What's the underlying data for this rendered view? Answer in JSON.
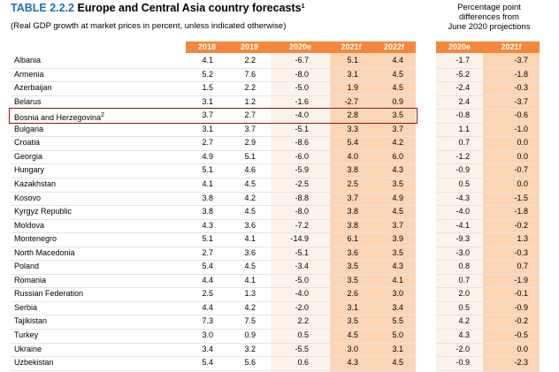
{
  "title": {
    "label": "TABLE 2.2.2",
    "text": "Europe and Central Asia country forecasts",
    "note_mark": "1"
  },
  "subtitle": "(Real GDP growth at market prices in percent, unless indicated otherwise)",
  "side_title": [
    "Percentage point",
    "differences from",
    "June 2020 projections"
  ],
  "table": {
    "headers": [
      "2018",
      "2019",
      "2020e",
      "2021f",
      "2022f"
    ],
    "diff_headers": [
      "2020e",
      "2021f"
    ],
    "rows": [
      {
        "country": "Albania",
        "values": [
          "4.1",
          "2.2",
          "-6.7",
          "5.1",
          "4.4"
        ],
        "diffs": [
          "-1.7",
          "-3.7"
        ]
      },
      {
        "country": "Armenia",
        "values": [
          "5.2",
          "7.6",
          "-8.0",
          "3.1",
          "4.5"
        ],
        "diffs": [
          "-5.2",
          "-1.8"
        ]
      },
      {
        "country": "Azerbaijan",
        "values": [
          "1.5",
          "2.2",
          "-5.0",
          "1.9",
          "4.5"
        ],
        "diffs": [
          "-2.4",
          "-0.3"
        ]
      },
      {
        "country": "Belarus",
        "values": [
          "3.1",
          "1.2",
          "-1.6",
          "-2.7",
          "0.9"
        ],
        "diffs": [
          "2.4",
          "-3.7"
        ]
      },
      {
        "country": "Bosnia and Herzegovina",
        "note_mark": "2",
        "values": [
          "3.7",
          "2.7",
          "-4.0",
          "2.8",
          "3.5"
        ],
        "diffs": [
          "-0.8",
          "-0.6"
        ]
      },
      {
        "country": "Bulgaria",
        "values": [
          "3.1",
          "3.7",
          "-5.1",
          "3.3",
          "3.7"
        ],
        "diffs": [
          "1.1",
          "-1.0"
        ]
      },
      {
        "country": "Croatia",
        "values": [
          "2.7",
          "2.9",
          "-8.6",
          "5.4",
          "4.2"
        ],
        "diffs": [
          "0.7",
          "0.0"
        ]
      },
      {
        "country": "Georgia",
        "values": [
          "4.9",
          "5.1",
          "-6.0",
          "4.0",
          "6.0"
        ],
        "diffs": [
          "-1.2",
          "0.0"
        ]
      },
      {
        "country": "Hungary",
        "values": [
          "5.1",
          "4.6",
          "-5.9",
          "3.8",
          "4.3"
        ],
        "diffs": [
          "-0.9",
          "-0.7"
        ]
      },
      {
        "country": "Kazakhstan",
        "values": [
          "4.1",
          "4.5",
          "-2.5",
          "2.5",
          "3.5"
        ],
        "diffs": [
          "0.5",
          "0.0"
        ]
      },
      {
        "country": "Kosovo",
        "values": [
          "3.8",
          "4.2",
          "-8.8",
          "3.7",
          "4.9"
        ],
        "diffs": [
          "-4.3",
          "-1.5"
        ]
      },
      {
        "country": "Kyrgyz Republic",
        "values": [
          "3.8",
          "4.5",
          "-8.0",
          "3.8",
          "4.5"
        ],
        "diffs": [
          "-4.0",
          "-1.8"
        ]
      },
      {
        "country": "Moldova",
        "values": [
          "4.3",
          "3.6",
          "-7.2",
          "3.8",
          "3.7"
        ],
        "diffs": [
          "-4.1",
          "-0.2"
        ]
      },
      {
        "country": "Montenegro",
        "values": [
          "5.1",
          "4.1",
          "-14.9",
          "6.1",
          "3.9"
        ],
        "diffs": [
          "-9.3",
          "1.3"
        ]
      },
      {
        "country": "North Macedonia",
        "values": [
          "2.7",
          "3.6",
          "-5.1",
          "3.6",
          "3.5"
        ],
        "diffs": [
          "-3.0",
          "-0.3"
        ]
      },
      {
        "country": "Poland",
        "values": [
          "5.4",
          "4.5",
          "-3.4",
          "3.5",
          "4.3"
        ],
        "diffs": [
          "0.8",
          "0.7"
        ]
      },
      {
        "country": "Romania",
        "values": [
          "4.4",
          "4.1",
          "-5.0",
          "3.5",
          "4.1"
        ],
        "diffs": [
          "0.7",
          "-1.9"
        ]
      },
      {
        "country": "Russian Federation",
        "values": [
          "2.5",
          "1.3",
          "-4.0",
          "2.6",
          "3.0"
        ],
        "diffs": [
          "2.0",
          "-0.1"
        ]
      },
      {
        "country": "Serbia",
        "values": [
          "4.4",
          "4.2",
          "-2.0",
          "3.1",
          "3.4"
        ],
        "diffs": [
          "0.5",
          "-0.9"
        ]
      },
      {
        "country": "Tajikistan",
        "values": [
          "7.3",
          "7.5",
          "2.2",
          "3.5",
          "5.5"
        ],
        "diffs": [
          "4.2",
          "-0.2"
        ]
      },
      {
        "country": "Turkey",
        "values": [
          "3.0",
          "0.9",
          "0.5",
          "4.5",
          "5.0"
        ],
        "diffs": [
          "4.3",
          "-0.5"
        ]
      },
      {
        "country": "Ukraine",
        "values": [
          "3.4",
          "3.2",
          "-5.5",
          "3.0",
          "3.1"
        ],
        "diffs": [
          "-2.0",
          "0.0"
        ]
      },
      {
        "country": "Uzbekistan",
        "values": [
          "5.4",
          "5.6",
          "0.6",
          "4.3",
          "4.5"
        ],
        "diffs": [
          "-0.9",
          "-2.3"
        ]
      }
    ]
  }
}
